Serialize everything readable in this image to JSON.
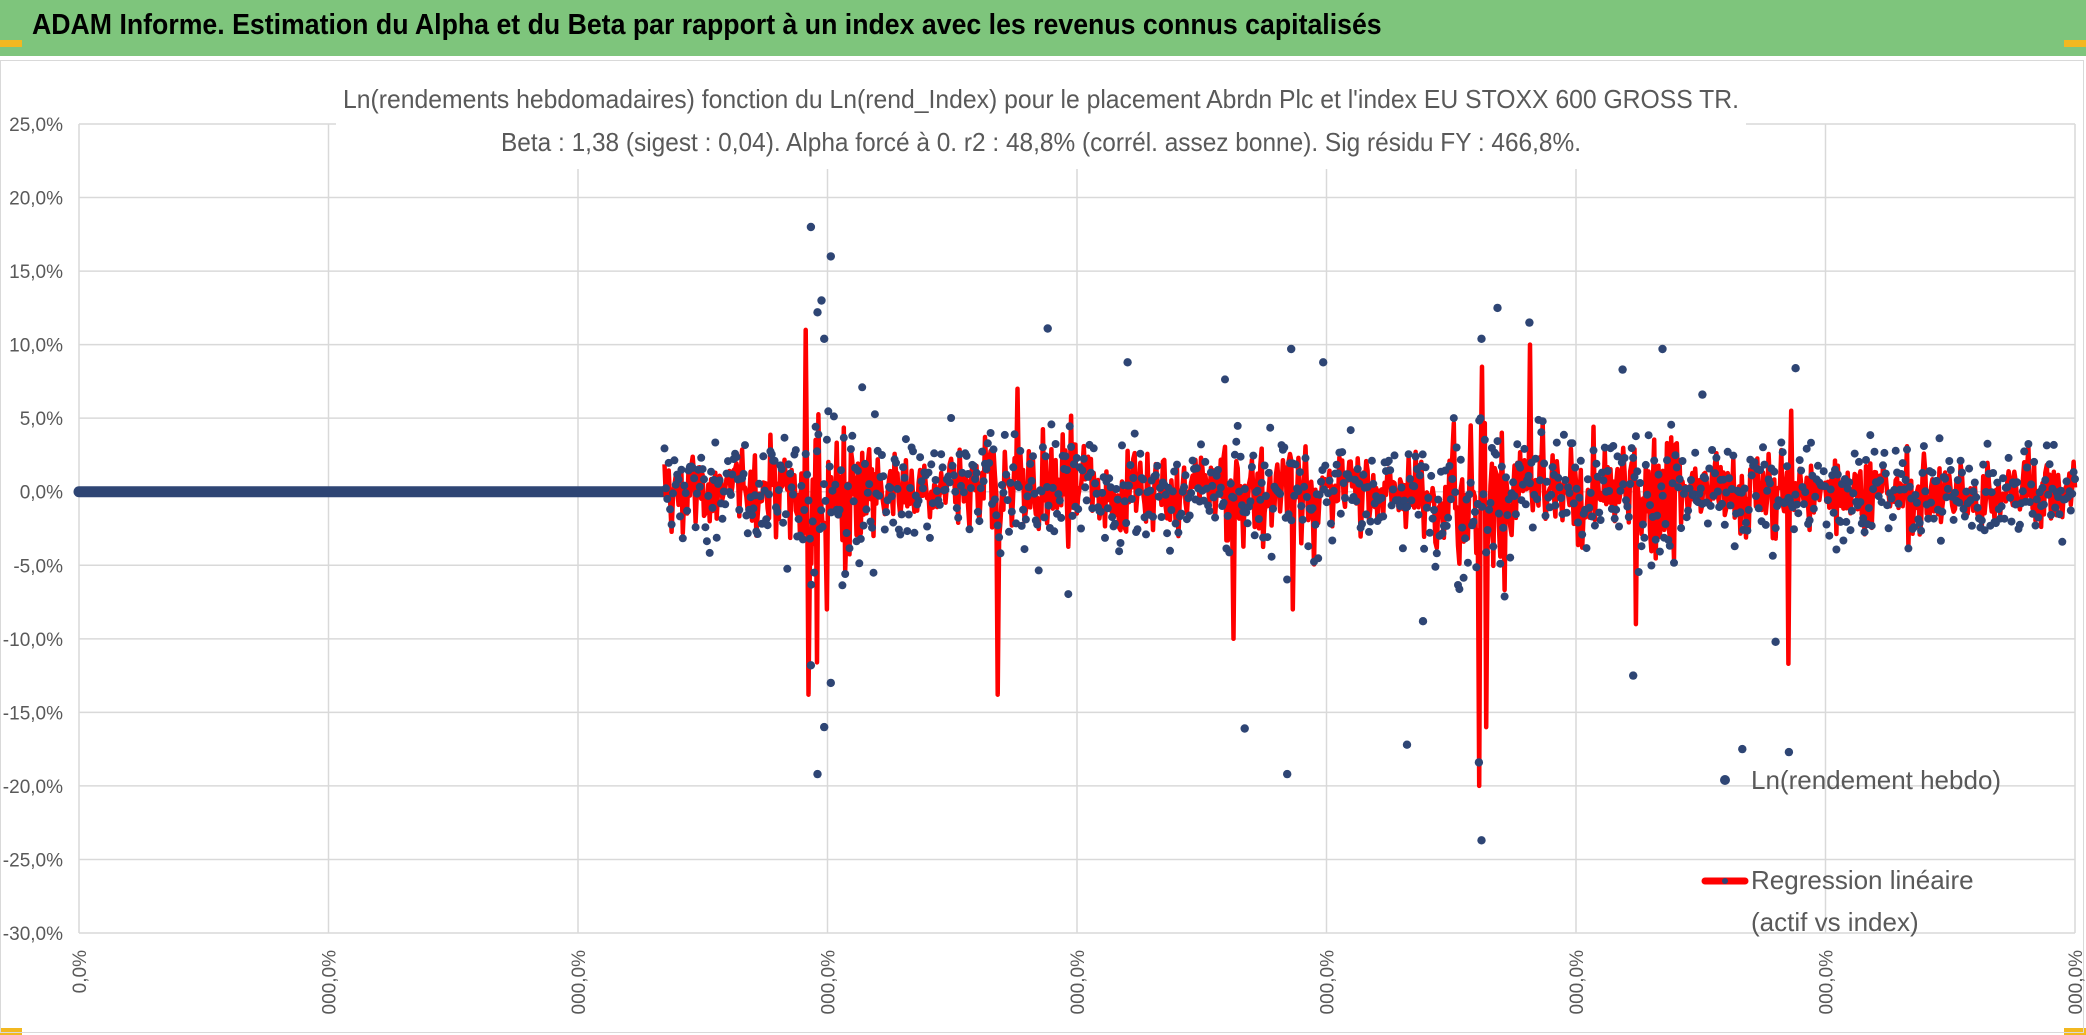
{
  "banner": {
    "title": "ADAM Informe. Estimation du Alpha et du Beta par rapport à un index avec les revenus connus capitalisés",
    "background": "#7ec57c",
    "corner_color": "#f2b820"
  },
  "chart_data": {
    "type": "line",
    "title_line1": "Ln(rendements hebdomadaires) fonction du Ln(rend_Index) pour le placement Abrdn Plc et l'index EU STOXX 600 GROSS TR.",
    "title_line2": "Beta : 1,38 (sigest : 0,04). Alpha forcé à 0. r2 : 48,8% (corrél. assez bonne). Sig résidu FY : 466,8%.",
    "ylim": [
      -30,
      25
    ],
    "yticks": [
      "25,0%",
      "20,0%",
      "15,0%",
      "10,0%",
      "5,0%",
      "0,0%",
      "-5,0%",
      "-10,0%",
      "-15,0%",
      "-20,0%",
      "-25,0%",
      "-30,0%"
    ],
    "xlim": [
      0,
      1500
    ],
    "xticks": [
      "0,0%",
      "000,0%",
      "000,0%",
      "000,0%",
      "000,0%",
      "000,0%",
      "000,0%",
      "000,0%",
      "000,0%"
    ],
    "legend": {
      "position": "right",
      "entries": [
        "Ln(rendement hebdo)",
        "Regression linéaire",
        "(actif vs index)"
      ]
    },
    "series": [
      {
        "name": "Ln(rendement hebdo)",
        "kind": "scatter",
        "color": "#2e4574"
      },
      {
        "name": "Regression linéaire (actif vs index)",
        "kind": "line",
        "color": "#ff0000"
      }
    ],
    "zero_segment": {
      "x": [
        0,
        440
      ],
      "y": 0
    },
    "data_x_range": [
      440,
      1500
    ],
    "highlight_points": [
      {
        "x": 550,
        "y": 18.0
      },
      {
        "x": 555,
        "y": 12.2
      },
      {
        "x": 558,
        "y": 13.0
      },
      {
        "x": 565,
        "y": 16.0
      },
      {
        "x": 560,
        "y": 10.4
      },
      {
        "x": 555,
        "y": -19.2
      },
      {
        "x": 560,
        "y": -16.0
      },
      {
        "x": 565,
        "y": -13.0
      },
      {
        "x": 550,
        "y": -11.8
      },
      {
        "x": 728,
        "y": 11.1
      },
      {
        "x": 788,
        "y": 8.8
      },
      {
        "x": 876,
        "y": -16.1
      },
      {
        "x": 908,
        "y": -19.2
      },
      {
        "x": 911,
        "y": 9.7
      },
      {
        "x": 935,
        "y": 8.8
      },
      {
        "x": 1066,
        "y": 12.5
      },
      {
        "x": 1090,
        "y": 11.5
      },
      {
        "x": 1054,
        "y": -23.7
      },
      {
        "x": 1052,
        "y": -18.4
      },
      {
        "x": 1054,
        "y": 10.4
      },
      {
        "x": 998,
        "y": -17.2
      },
      {
        "x": 1010,
        "y": -8.8
      },
      {
        "x": 1190,
        "y": 9.7
      },
      {
        "x": 1160,
        "y": 8.3
      },
      {
        "x": 1220,
        "y": 6.6
      },
      {
        "x": 1290,
        "y": 8.4
      },
      {
        "x": 1250,
        "y": -17.5
      },
      {
        "x": 1285,
        "y": -17.7
      },
      {
        "x": 1275,
        "y": -10.2
      },
      {
        "x": 1168,
        "y": -12.5
      }
    ],
    "highlight_line_spikes": [
      {
        "x": 546,
        "y": 11.0
      },
      {
        "x": 548,
        "y": -13.8
      },
      {
        "x": 555,
        "y": -11.6
      },
      {
        "x": 562,
        "y": -8.0
      },
      {
        "x": 690,
        "y": -13.8
      },
      {
        "x": 705,
        "y": 7.0
      },
      {
        "x": 868,
        "y": -10.0
      },
      {
        "x": 912,
        "y": -8.0
      },
      {
        "x": 1052,
        "y": -20.0
      },
      {
        "x": 1054,
        "y": 8.5
      },
      {
        "x": 1058,
        "y": -16.0
      },
      {
        "x": 1090,
        "y": 10.0
      },
      {
        "x": 1285,
        "y": -11.7
      },
      {
        "x": 1287,
        "y": 5.5
      },
      {
        "x": 1170,
        "y": -9.0
      }
    ]
  }
}
